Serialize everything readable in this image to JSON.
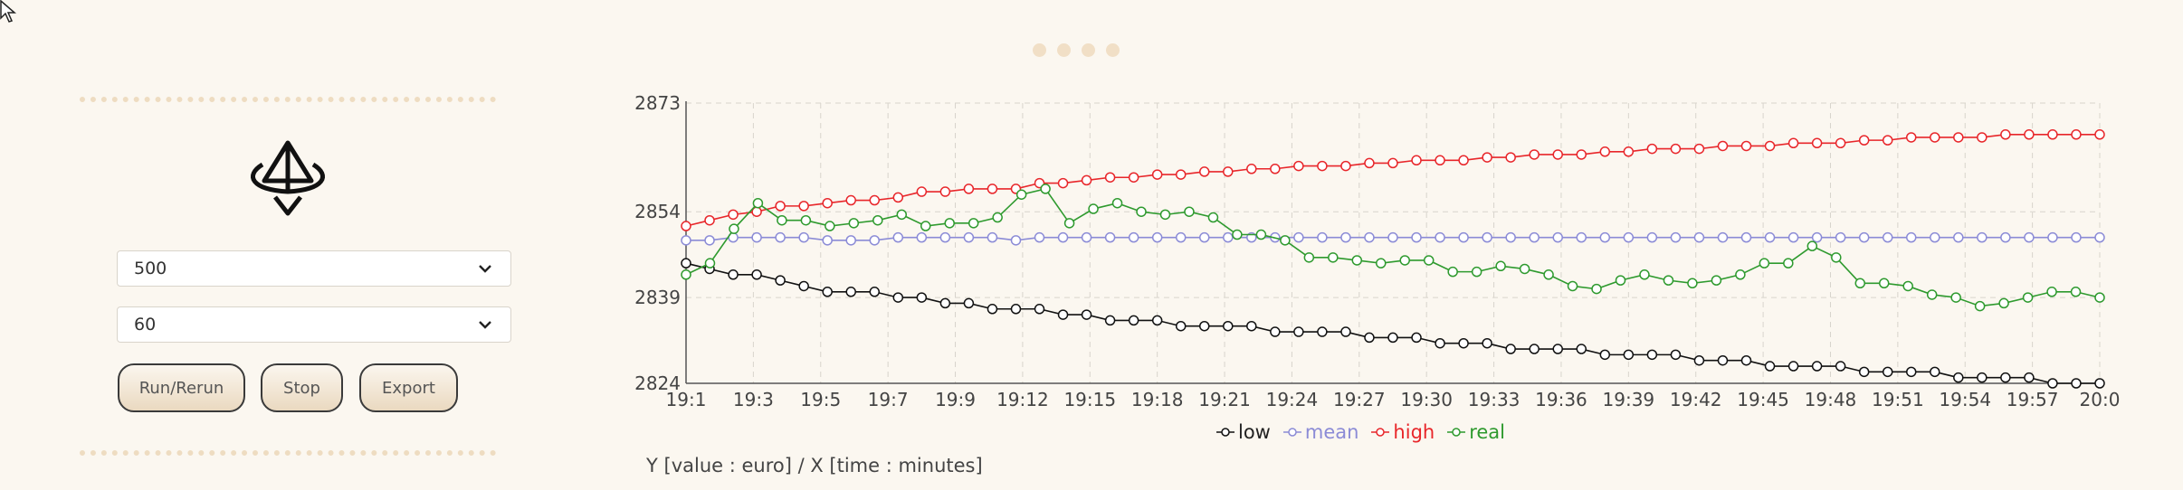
{
  "controls": {
    "select_1_value": "500",
    "select_2_value": "60",
    "run_label": "Run/Rerun",
    "stop_label": "Stop",
    "export_label": "Export"
  },
  "colors": {
    "low": "#111111",
    "mean": "#8b8bd6",
    "high": "#e8262a",
    "real": "#2e9a2e",
    "background": "#fbf7f0"
  },
  "caption": "Y [value : euro] / X [time : minutes]",
  "chart_data": {
    "type": "line",
    "xlabel": "",
    "ylabel": "",
    "ylim": [
      2824,
      2873
    ],
    "y_ticks": [
      2824,
      2839,
      2854,
      2873
    ],
    "x_start_label": "19:1",
    "x_end_label": "20:0",
    "x_tick_labels": [
      "19:1",
      "19:3",
      "19:5",
      "19:7",
      "19:9",
      "19:12",
      "19:15",
      "19:18",
      "19:21",
      "19:24",
      "19:27",
      "19:30",
      "19:33",
      "19:36",
      "19:39",
      "19:42",
      "19:45",
      "19:48",
      "19:51",
      "19:54",
      "19:57",
      "20:0"
    ],
    "grid": true,
    "legend": "bottom-center",
    "series": [
      {
        "name": "low",
        "values": [
          2845,
          2844,
          2843,
          2843,
          2842,
          2841,
          2840,
          2840,
          2840,
          2839,
          2839,
          2838,
          2838,
          2837,
          2837,
          2837,
          2836,
          2836,
          2835,
          2835,
          2835,
          2834,
          2834,
          2834,
          2834,
          2833,
          2833,
          2833,
          2833,
          2832,
          2832,
          2832,
          2831,
          2831,
          2831,
          2830,
          2830,
          2830,
          2830,
          2829,
          2829,
          2829,
          2829,
          2828,
          2828,
          2828,
          2827,
          2827,
          2827,
          2827,
          2826,
          2826,
          2826,
          2826,
          2825,
          2825,
          2825,
          2825,
          2824,
          2824,
          2824
        ]
      },
      {
        "name": "mean",
        "values": [
          2849,
          2849,
          2849.5,
          2849.5,
          2849.5,
          2849.5,
          2849,
          2849,
          2849,
          2849.5,
          2849.5,
          2849.5,
          2849.5,
          2849.5,
          2849,
          2849.5,
          2849.5,
          2849.5,
          2849.5,
          2849.5,
          2849.5,
          2849.5,
          2849.5,
          2849.5,
          2849.5,
          2849.5,
          2849.5,
          2849.5,
          2849.5,
          2849.5,
          2849.5,
          2849.5,
          2849.5,
          2849.5,
          2849.5,
          2849.5,
          2849.5,
          2849.5,
          2849.5,
          2849.5,
          2849.5,
          2849.5,
          2849.5,
          2849.5,
          2849.5,
          2849.5,
          2849.5,
          2849.5,
          2849.5,
          2849.5,
          2849.5,
          2849.5,
          2849.5,
          2849.5,
          2849.5,
          2849.5,
          2849.5,
          2849.5,
          2849.5,
          2849.5,
          2849.5
        ]
      },
      {
        "name": "high",
        "values": [
          2851.5,
          2852.5,
          2853.5,
          2854,
          2855,
          2855,
          2855.5,
          2856,
          2856,
          2856.5,
          2857.5,
          2857.5,
          2858,
          2858,
          2858,
          2859,
          2859,
          2859.5,
          2860,
          2860,
          2860.5,
          2860.5,
          2861,
          2861,
          2861.5,
          2861.5,
          2862,
          2862,
          2862,
          2862.5,
          2862.5,
          2863,
          2863,
          2863,
          2863.5,
          2863.5,
          2864,
          2864,
          2864,
          2864.5,
          2864.5,
          2865,
          2865,
          2865,
          2865.5,
          2865.5,
          2865.5,
          2866,
          2866,
          2866,
          2866.5,
          2866.5,
          2867,
          2867,
          2867,
          2867,
          2867.5,
          2867.5,
          2867.5,
          2867.5,
          2867.5
        ]
      },
      {
        "name": "real",
        "values": [
          2843,
          2845,
          2851,
          2855.5,
          2852.5,
          2852.5,
          2851.5,
          2852,
          2852.5,
          2853.5,
          2851.5,
          2852,
          2852,
          2853,
          2857,
          2858,
          2852,
          2854.5,
          2855.5,
          2854,
          2853.5,
          2854,
          2853,
          2850,
          2850,
          2849,
          2846,
          2846,
          2845.5,
          2845,
          2845.5,
          2845.5,
          2843.5,
          2843.5,
          2844.5,
          2844,
          2843,
          2841,
          2840.5,
          2842,
          2843,
          2842,
          2841.5,
          2842,
          2843,
          2845,
          2845,
          2848,
          2846,
          2841.5,
          2841.5,
          2841,
          2839.5,
          2839,
          2837.5,
          2838,
          2839,
          2840,
          2840,
          2839
        ]
      }
    ]
  }
}
